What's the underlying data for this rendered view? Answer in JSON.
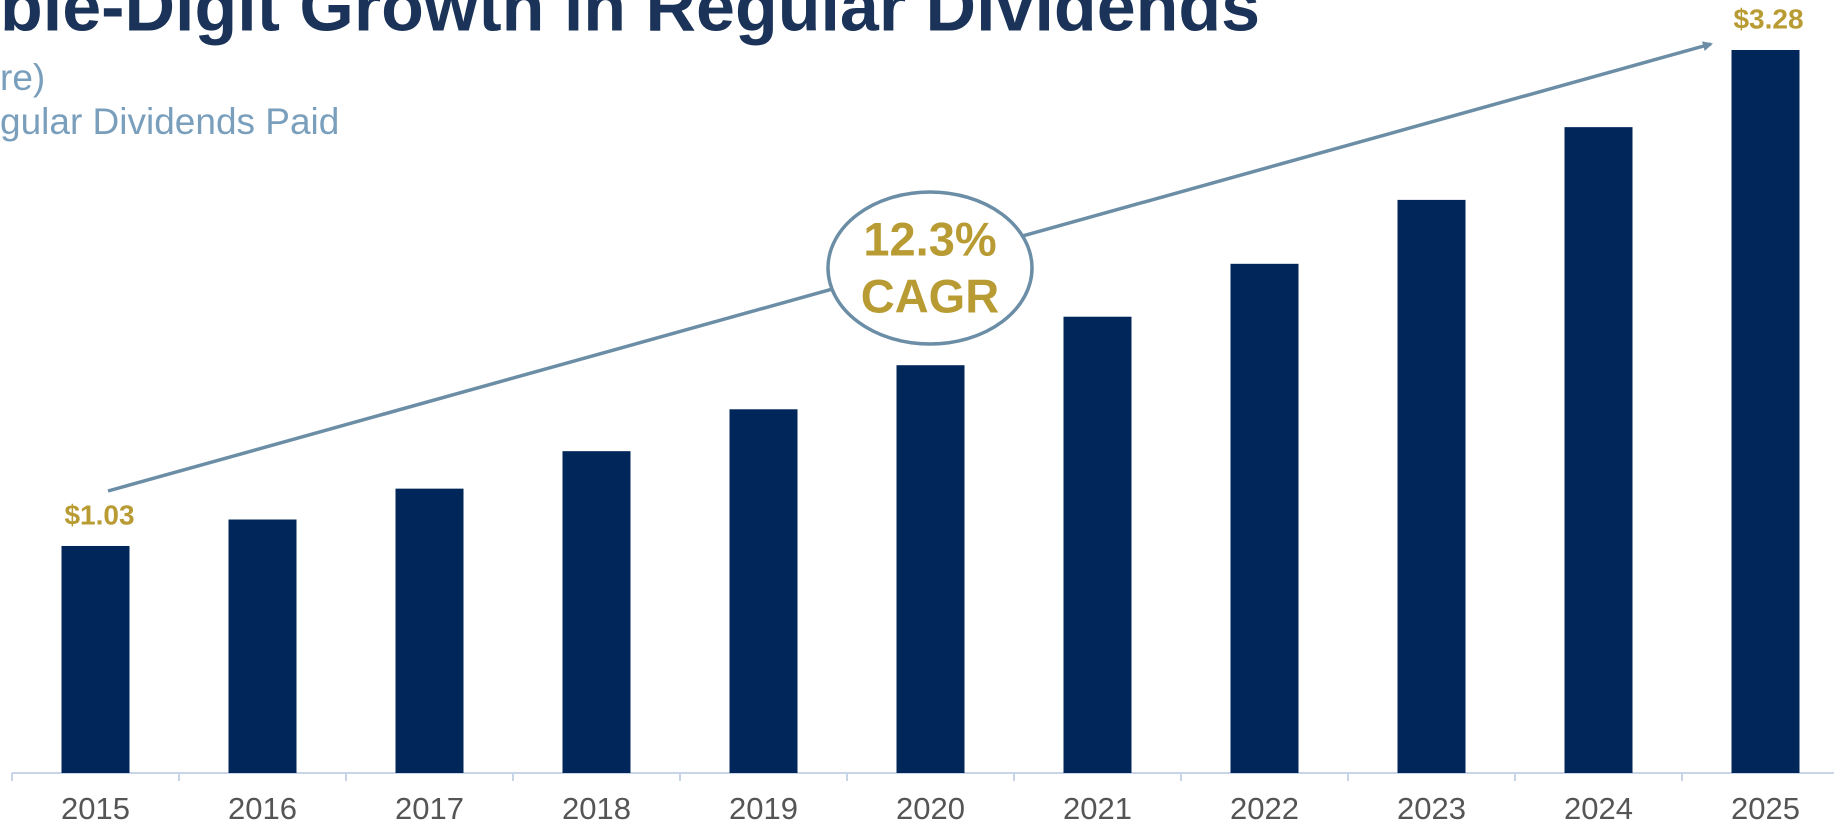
{
  "chart_data": {
    "type": "bar",
    "title": "ble-Digit Growth in Regular Dividends",
    "subtitle": [
      "re)",
      "gular Dividends Paid"
    ],
    "annotation": [
      "12.3%",
      "CAGR"
    ],
    "categories": [
      "2015",
      "2016",
      "2017",
      "2018",
      "2019",
      "2020",
      "2021",
      "2022",
      "2023",
      "2024",
      "2025"
    ],
    "values": [
      1.03,
      1.15,
      1.29,
      1.46,
      1.65,
      1.85,
      2.07,
      2.31,
      2.6,
      2.93,
      3.28
    ],
    "value_labels": [
      "$1.03",
      null,
      null,
      null,
      null,
      null,
      null,
      null,
      null,
      null,
      "$3.28"
    ],
    "color": "#00265a",
    "ylim": [
      0,
      3.28
    ]
  }
}
